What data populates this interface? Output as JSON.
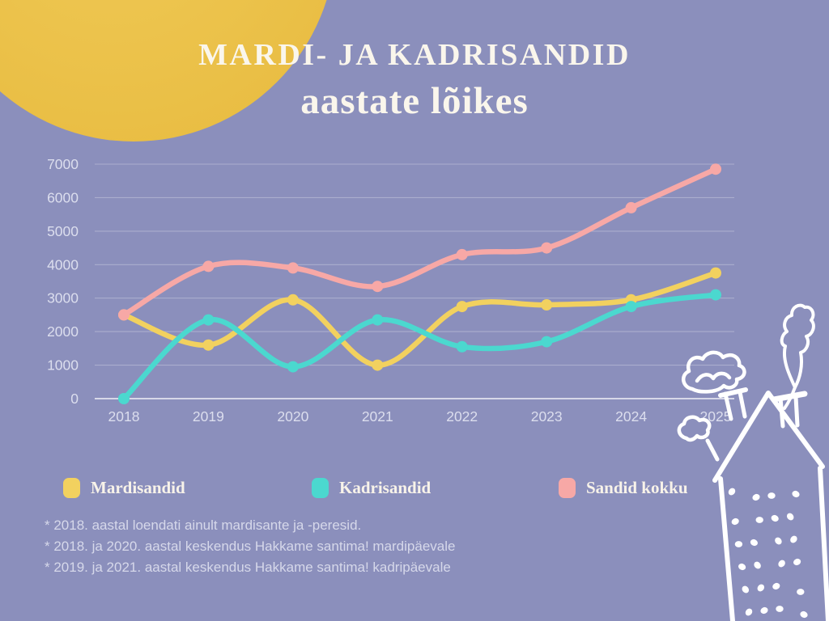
{
  "page": {
    "background": "#8b8fbc",
    "sun_color": "#ebc149",
    "house_color": "#ffffff"
  },
  "title": {
    "line1": "MARDI- JA KADRISANDID",
    "line2": "aastate lõikes",
    "color": "#faf6ec"
  },
  "chart_data": {
    "type": "line",
    "x": [
      "2018",
      "2019",
      "2020",
      "2021",
      "2022",
      "2023",
      "2024",
      "2025"
    ],
    "series": [
      {
        "name": "Mardisandid",
        "color": "#f2d15f",
        "values": [
          2500,
          1600,
          2950,
          1000,
          2750,
          2800,
          2950,
          3750
        ]
      },
      {
        "name": "Kadrisandid",
        "color": "#4bd8cf",
        "values": [
          0,
          2350,
          950,
          2350,
          1550,
          1700,
          2750,
          3100
        ]
      },
      {
        "name": "Sandid kokku",
        "color": "#f7a8a6",
        "values": [
          2500,
          3950,
          3900,
          3350,
          4300,
          4500,
          5700,
          6850
        ]
      }
    ],
    "title": "Mardi- ja kadrisandid aastate lõikes",
    "xlabel": "",
    "ylabel": "",
    "ylim": [
      0,
      7000
    ],
    "yticks": [
      0,
      1000,
      2000,
      3000,
      4000,
      5000,
      6000,
      7000
    ],
    "grid": true,
    "legend_position": "bottom"
  },
  "footnotes": [
    "* 2018. aastal loendati ainult mardisante ja -peresid.",
    "* 2018. ja 2020. aastal keskendus Hakkame santima! mardipäevale",
    "* 2019. ja 2021. aastal keskendus Hakkame santima! kadripäevale"
  ]
}
